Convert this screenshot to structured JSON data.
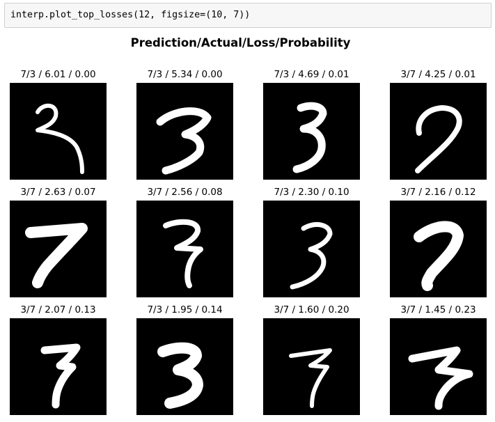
{
  "code_cell": {
    "source": "interp.plot_top_losses(12, figsize=(10, 7))"
  },
  "figure": {
    "title": "Prediction/Actual/Loss/Probability",
    "panels": [
      {
        "label": "7/3 / 6.01 / 0.00",
        "digit": "3"
      },
      {
        "label": "7/3 / 5.34 / 0.00",
        "digit": "3"
      },
      {
        "label": "7/3 / 4.69 / 0.01",
        "digit": "3"
      },
      {
        "label": "3/7 / 4.25 / 0.01",
        "digit": "7"
      },
      {
        "label": "3/7 / 2.63 / 0.07",
        "digit": "7"
      },
      {
        "label": "3/7 / 2.56 / 0.08",
        "digit": "7"
      },
      {
        "label": "7/3 / 2.30 / 0.10",
        "digit": "3"
      },
      {
        "label": "3/7 / 2.16 / 0.12",
        "digit": "7"
      },
      {
        "label": "3/7 / 2.07 / 0.13",
        "digit": "7"
      },
      {
        "label": "7/3 / 1.95 / 0.14",
        "digit": "3"
      },
      {
        "label": "3/7 / 1.60 / 0.20",
        "digit": "7"
      },
      {
        "label": "3/7 / 1.45 / 0.23",
        "digit": "7"
      }
    ]
  }
}
